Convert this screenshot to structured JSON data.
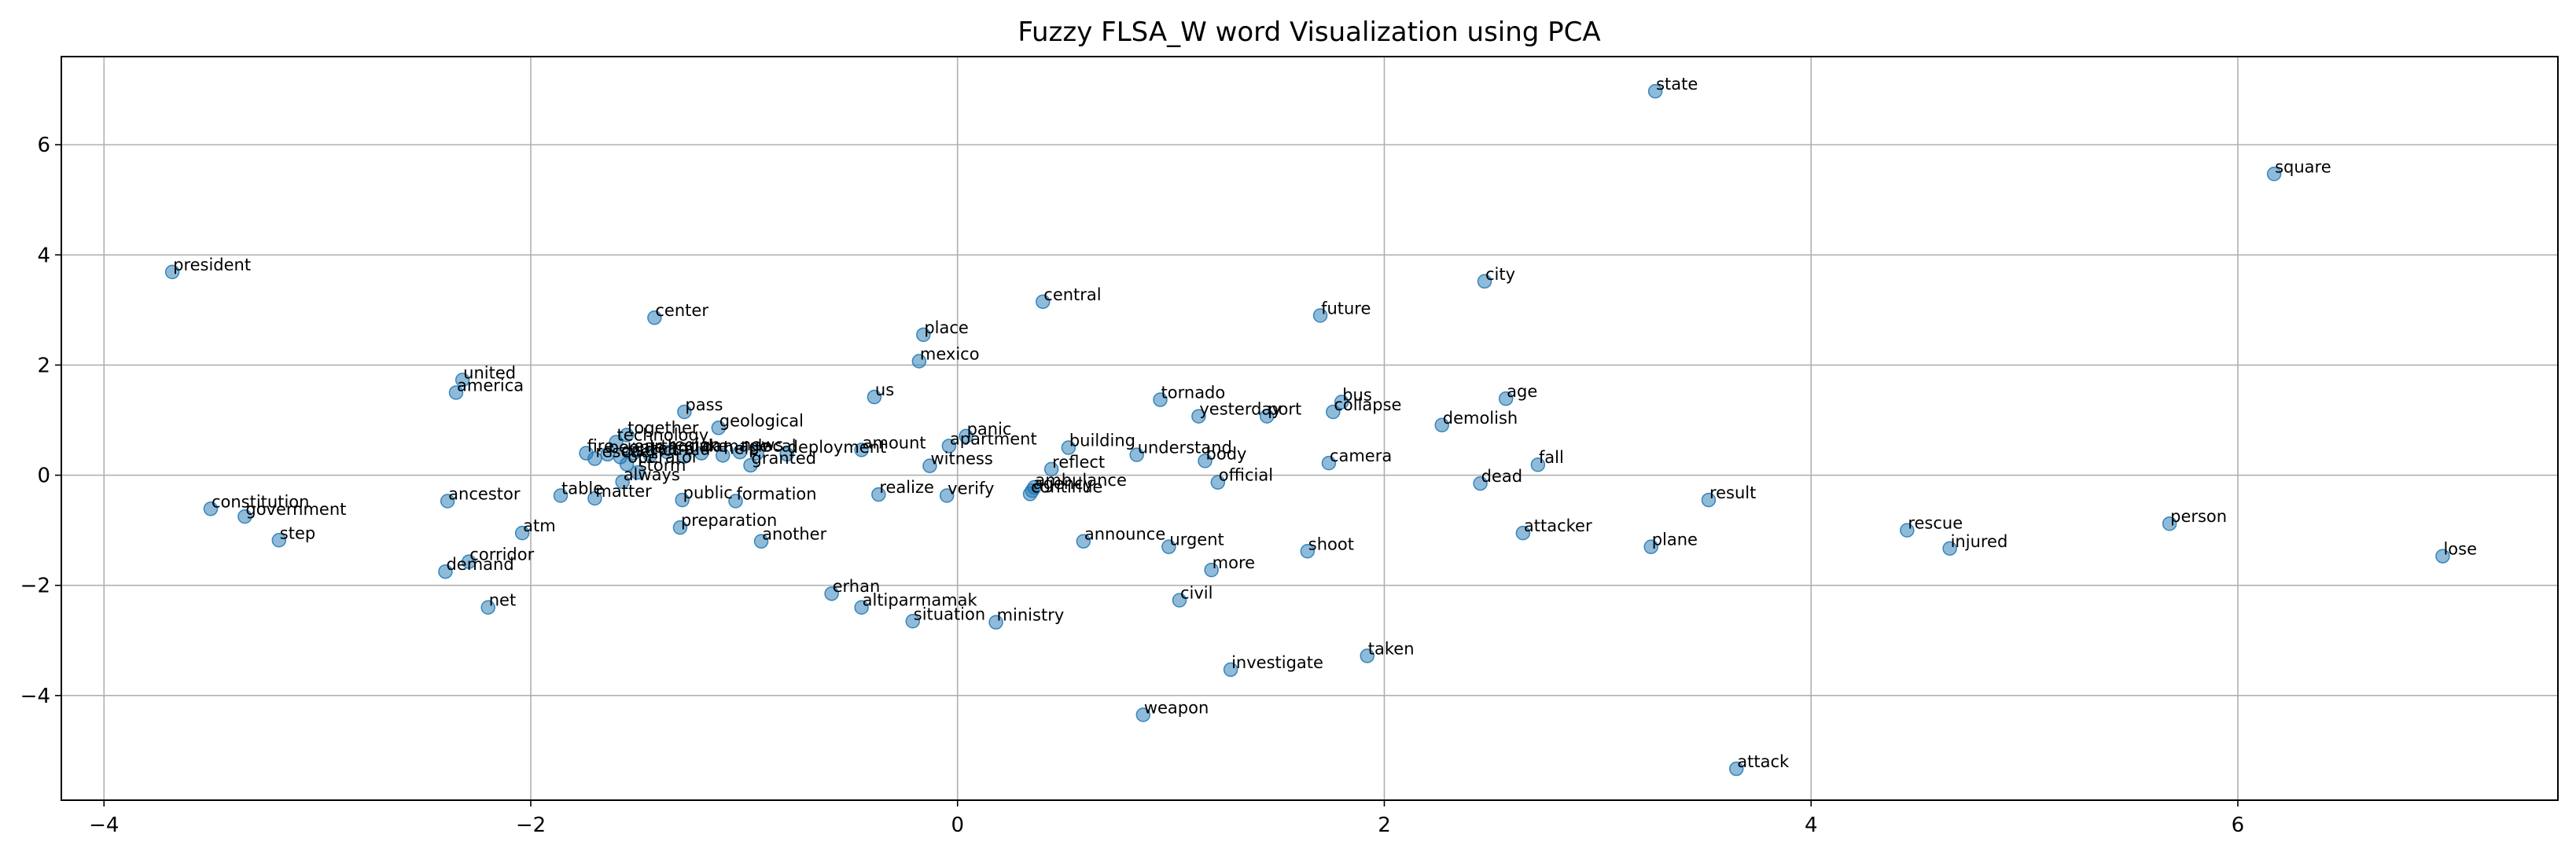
{
  "chart_data": {
    "type": "scatter",
    "title": "Fuzzy FLSA_W word Visualization using PCA",
    "xlabel": "",
    "ylabel": "",
    "xlim": [
      -4.2,
      7.5
    ],
    "ylim": [
      -5.9,
      7.6
    ],
    "xticks": [
      -4,
      -2,
      0,
      2,
      4,
      6
    ],
    "yticks": [
      -4,
      -2,
      0,
      2,
      4,
      6
    ],
    "grid": true,
    "marker_color": "#1f77b4",
    "marker_alpha": 0.5,
    "points": [
      {
        "label": "state",
        "x": 3.27,
        "y": 6.97
      },
      {
        "label": "square",
        "x": 6.17,
        "y": 5.47
      },
      {
        "label": "president",
        "x": -3.68,
        "y": 3.69
      },
      {
        "label": "city",
        "x": 2.47,
        "y": 3.52
      },
      {
        "label": "central",
        "x": 0.4,
        "y": 3.15
      },
      {
        "label": "future",
        "x": 1.7,
        "y": 2.9
      },
      {
        "label": "center",
        "x": -1.42,
        "y": 2.86
      },
      {
        "label": "place",
        "x": -0.16,
        "y": 2.55
      },
      {
        "label": "mexico",
        "x": -0.18,
        "y": 2.07
      },
      {
        "label": "united",
        "x": -2.32,
        "y": 1.73
      },
      {
        "label": "america",
        "x": -2.35,
        "y": 1.5
      },
      {
        "label": "us",
        "x": -0.39,
        "y": 1.42
      },
      {
        "label": "tornado",
        "x": 0.95,
        "y": 1.37
      },
      {
        "label": "age",
        "x": 2.57,
        "y": 1.39
      },
      {
        "label": "bus",
        "x": 1.8,
        "y": 1.33
      },
      {
        "label": "collapse",
        "x": 1.76,
        "y": 1.15
      },
      {
        "label": "yesterday",
        "x": 1.13,
        "y": 1.07
      },
      {
        "label": "port",
        "x": 1.45,
        "y": 1.07
      },
      {
        "label": "pass",
        "x": -1.28,
        "y": 1.15
      },
      {
        "label": "demolish",
        "x": 2.27,
        "y": 0.91
      },
      {
        "label": "geological",
        "x": -1.12,
        "y": 0.86
      },
      {
        "label": "together",
        "x": -1.55,
        "y": 0.73
      },
      {
        "label": "panic",
        "x": 0.04,
        "y": 0.71
      },
      {
        "label": "technology",
        "x": -1.6,
        "y": 0.6
      },
      {
        "label": "apartment",
        "x": -0.04,
        "y": 0.53
      },
      {
        "label": "amount",
        "x": -0.45,
        "y": 0.46
      },
      {
        "label": "building",
        "x": 0.52,
        "y": 0.5
      },
      {
        "label": "deployment",
        "x": -0.8,
        "y": 0.38
      },
      {
        "label": "understand",
        "x": 0.84,
        "y": 0.37
      },
      {
        "label": "body",
        "x": 1.16,
        "y": 0.26
      },
      {
        "label": "camera",
        "x": 1.74,
        "y": 0.22
      },
      {
        "label": "fall",
        "x": 2.72,
        "y": 0.19
      },
      {
        "label": "witness",
        "x": -0.13,
        "y": 0.17
      },
      {
        "label": "reflect",
        "x": 0.44,
        "y": 0.11
      },
      {
        "label": "granted",
        "x": -0.97,
        "y": 0.18
      },
      {
        "label": "operator",
        "x": -1.55,
        "y": 0.2
      },
      {
        "label": "storm",
        "x": -1.5,
        "y": 0.05
      },
      {
        "label": "official",
        "x": 1.22,
        "y": -0.13
      },
      {
        "label": "dead",
        "x": 2.45,
        "y": -0.15
      },
      {
        "label": "ambulance",
        "x": 0.36,
        "y": -0.22
      },
      {
        "label": "agency",
        "x": 0.35,
        "y": -0.28
      },
      {
        "label": "continue",
        "x": 0.34,
        "y": -0.34
      },
      {
        "label": "always",
        "x": -1.57,
        "y": -0.12
      },
      {
        "label": "realize",
        "x": -0.37,
        "y": -0.35
      },
      {
        "label": "verify",
        "x": -0.05,
        "y": -0.37
      },
      {
        "label": "table",
        "x": -1.86,
        "y": -0.37
      },
      {
        "label": "matter",
        "x": -1.7,
        "y": -0.42
      },
      {
        "label": "ancestor",
        "x": -2.39,
        "y": -0.47
      },
      {
        "label": "public",
        "x": -1.29,
        "y": -0.45
      },
      {
        "label": "formation",
        "x": -1.04,
        "y": -0.47
      },
      {
        "label": "result",
        "x": 3.52,
        "y": -0.45
      },
      {
        "label": "constitution",
        "x": -3.5,
        "y": -0.61
      },
      {
        "label": "government",
        "x": -3.34,
        "y": -0.75
      },
      {
        "label": "person",
        "x": 5.68,
        "y": -0.88
      },
      {
        "label": "rescue",
        "x": 4.45,
        "y": -1.0
      },
      {
        "label": "preparation",
        "x": -1.3,
        "y": -0.95
      },
      {
        "label": "atm",
        "x": -2.04,
        "y": -1.05
      },
      {
        "label": "attacker",
        "x": 2.65,
        "y": -1.05
      },
      {
        "label": "step",
        "x": -3.18,
        "y": -1.18
      },
      {
        "label": "another",
        "x": -0.92,
        "y": -1.2
      },
      {
        "label": "announce",
        "x": 0.59,
        "y": -1.2
      },
      {
        "label": "plane",
        "x": 3.25,
        "y": -1.3
      },
      {
        "label": "urgent",
        "x": 0.99,
        "y": -1.3
      },
      {
        "label": "injured",
        "x": 4.65,
        "y": -1.33
      },
      {
        "label": "shoot",
        "x": 1.64,
        "y": -1.38
      },
      {
        "label": "lose",
        "x": 6.96,
        "y": -1.47
      },
      {
        "label": "corridor",
        "x": -2.29,
        "y": -1.57
      },
      {
        "label": "demand",
        "x": -2.4,
        "y": -1.75
      },
      {
        "label": "more",
        "x": 1.19,
        "y": -1.72
      },
      {
        "label": "erhan",
        "x": -0.59,
        "y": -2.15
      },
      {
        "label": "civil",
        "x": 1.04,
        "y": -2.27
      },
      {
        "label": "net",
        "x": -2.2,
        "y": -2.4
      },
      {
        "label": "altiparmamak",
        "x": -0.45,
        "y": -2.4
      },
      {
        "label": "situation",
        "x": -0.21,
        "y": -2.65
      },
      {
        "label": "ministry",
        "x": 0.18,
        "y": -2.67
      },
      {
        "label": "taken",
        "x": 1.92,
        "y": -3.28
      },
      {
        "label": "investigate",
        "x": 1.28,
        "y": -3.53
      },
      {
        "label": "weapon",
        "x": 0.87,
        "y": -4.35
      },
      {
        "label": "attack",
        "x": 3.65,
        "y": -5.33
      },
      {
        "label": "fire",
        "x": -1.74,
        "y": 0.4
      },
      {
        "label": "rescuer",
        "x": -1.7,
        "y": 0.3
      },
      {
        "label": "people",
        "x": -1.64,
        "y": 0.38
      },
      {
        "label": "district",
        "x": -1.58,
        "y": 0.33
      },
      {
        "label": "earthquake",
        "x": -1.52,
        "y": 0.4
      },
      {
        "label": "team",
        "x": -1.44,
        "y": 0.36
      },
      {
        "label": "region",
        "x": -1.36,
        "y": 0.42
      },
      {
        "label": "aid",
        "x": -1.28,
        "y": 0.34
      },
      {
        "label": "damage",
        "x": -1.2,
        "y": 0.4
      },
      {
        "label": "help",
        "x": -1.1,
        "y": 0.36
      },
      {
        "label": "news",
        "x": -1.02,
        "y": 0.42
      },
      {
        "label": "local",
        "x": -0.94,
        "y": 0.4
      }
    ]
  }
}
